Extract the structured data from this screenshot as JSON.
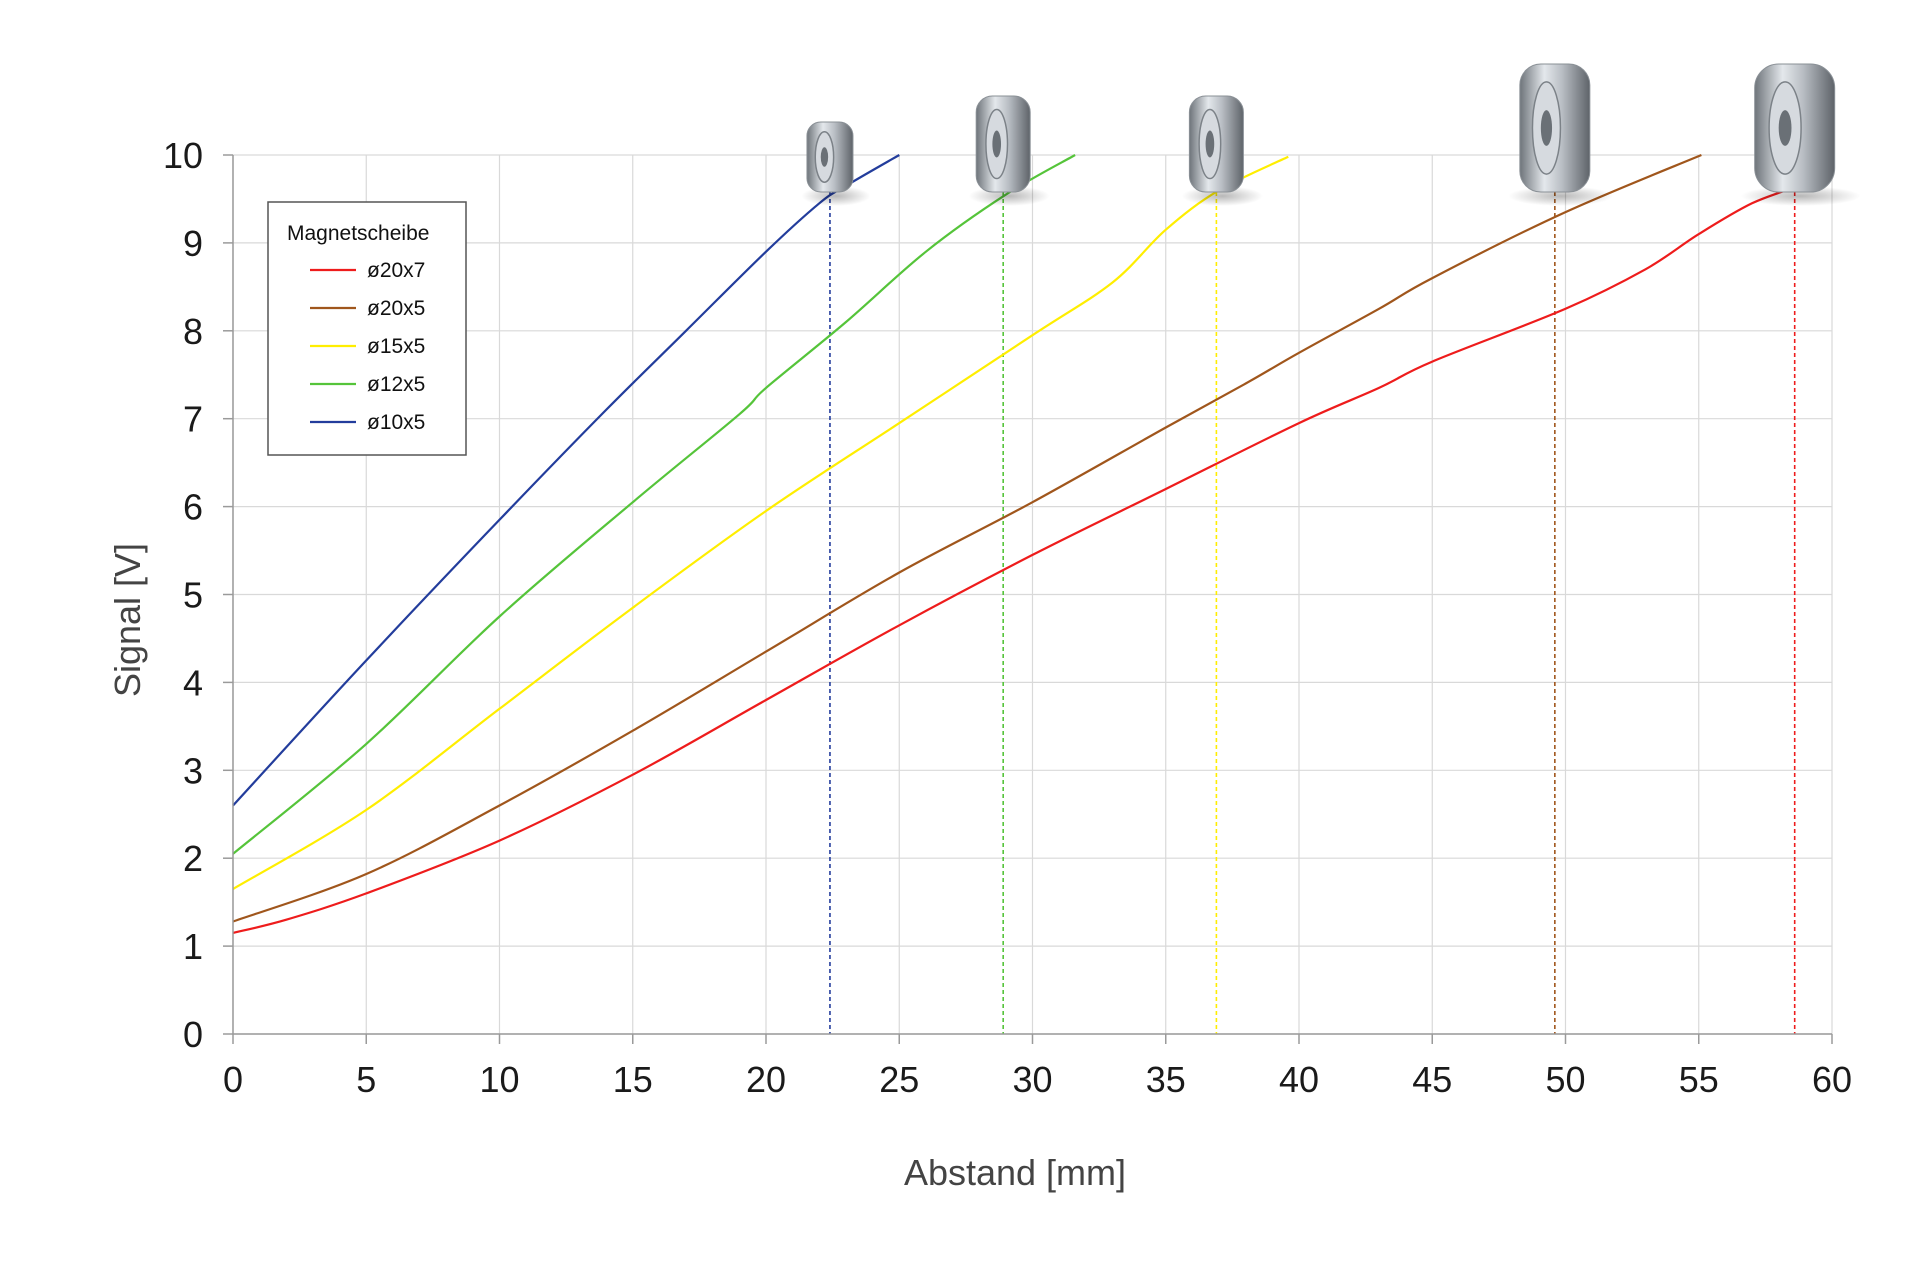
{
  "chart_data": {
    "type": "line",
    "xlabel": "Abstand [mm]",
    "ylabel": "Signal [V]",
    "xlim": [
      0,
      60
    ],
    "ylim": [
      0,
      10
    ],
    "xticks": [
      0,
      5,
      10,
      15,
      20,
      25,
      30,
      35,
      40,
      45,
      50,
      55,
      60
    ],
    "yticks": [
      0,
      1,
      2,
      3,
      4,
      5,
      6,
      7,
      8,
      9,
      10
    ],
    "grid": true,
    "legend": {
      "title": "Magnetscheibe",
      "position": "top-left"
    },
    "series": [
      {
        "name": "ø20x7",
        "color": "#ee1c1c",
        "x": [
          0,
          2,
          5,
          10,
          15,
          20,
          25,
          30,
          35,
          40,
          43,
          45,
          50,
          53,
          55,
          57,
          58.8
        ],
        "y": [
          1.15,
          1.3,
          1.6,
          2.2,
          2.95,
          3.8,
          4.65,
          5.45,
          6.2,
          6.95,
          7.35,
          7.65,
          8.25,
          8.7,
          9.1,
          9.45,
          9.65
        ],
        "cutoff_x": 58.6
      },
      {
        "name": "ø20x5",
        "color": "#a0561c",
        "x": [
          0,
          5,
          10,
          15,
          20,
          25,
          30,
          35,
          38,
          40,
          43,
          45,
          50,
          55.1
        ],
        "y": [
          1.28,
          1.82,
          2.6,
          3.45,
          4.35,
          5.25,
          6.05,
          6.9,
          7.4,
          7.75,
          8.25,
          8.6,
          9.35,
          10.0
        ],
        "cutoff_x": 49.6
      },
      {
        "name": "ø15x5",
        "color": "#ffee00",
        "x": [
          0,
          5,
          10,
          15,
          20,
          25,
          30,
          33,
          35,
          37,
          39.6
        ],
        "y": [
          1.65,
          2.55,
          3.7,
          4.85,
          5.95,
          6.95,
          7.95,
          8.55,
          9.15,
          9.6,
          9.98
        ],
        "cutoff_x": 36.9
      },
      {
        "name": "ø12x5",
        "color": "#55c43a",
        "x": [
          0,
          5,
          10,
          15,
          19,
          20,
          23,
          26,
          29,
          31.6
        ],
        "y": [
          2.05,
          3.3,
          4.75,
          6.05,
          7.05,
          7.35,
          8.1,
          8.9,
          9.55,
          10.0
        ],
        "cutoff_x": 28.9
      },
      {
        "name": "ø10x5",
        "color": "#233d9c",
        "x": [
          0,
          5,
          10,
          14,
          17,
          20,
          22,
          23,
          25
        ],
        "y": [
          2.6,
          4.25,
          5.85,
          7.1,
          8.0,
          8.9,
          9.45,
          9.65,
          10.0
        ],
        "cutoff_x": 22.4
      }
    ]
  }
}
